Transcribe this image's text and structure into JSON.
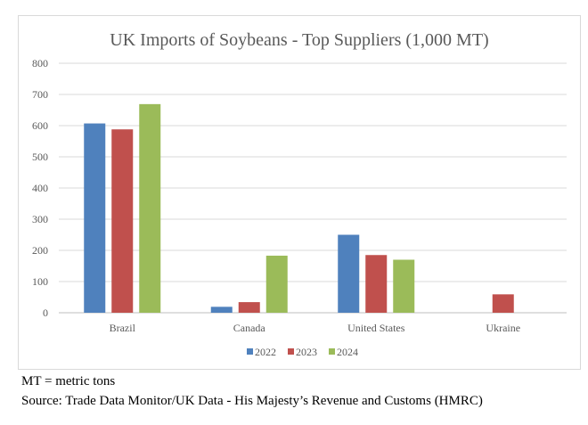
{
  "chart_data": {
    "type": "bar",
    "title": "UK Imports of Soybeans - Top Suppliers (1,000 MT)",
    "xlabel": "",
    "ylabel": "",
    "categories": [
      "Brazil",
      "Canada",
      "United States",
      "Ukraine"
    ],
    "series": [
      {
        "name": "2022",
        "color": "#4f81bd",
        "values": [
          607,
          19,
          250,
          null
        ]
      },
      {
        "name": "2023",
        "color": "#c0504d",
        "values": [
          588,
          34,
          185,
          59
        ]
      },
      {
        "name": "2024",
        "color": "#9bbb59",
        "values": [
          669,
          183,
          170,
          null
        ]
      }
    ],
    "ylim": [
      0,
      800
    ],
    "yticks": [
      0,
      100,
      200,
      300,
      400,
      500,
      600,
      700,
      800
    ],
    "grid": true,
    "legend": "bottom"
  },
  "notes": {
    "abbrev": "MT = metric tons",
    "source": "Source: Trade Data Monitor/UK Data - His Majesty’s Revenue and Customs (HMRC)"
  }
}
